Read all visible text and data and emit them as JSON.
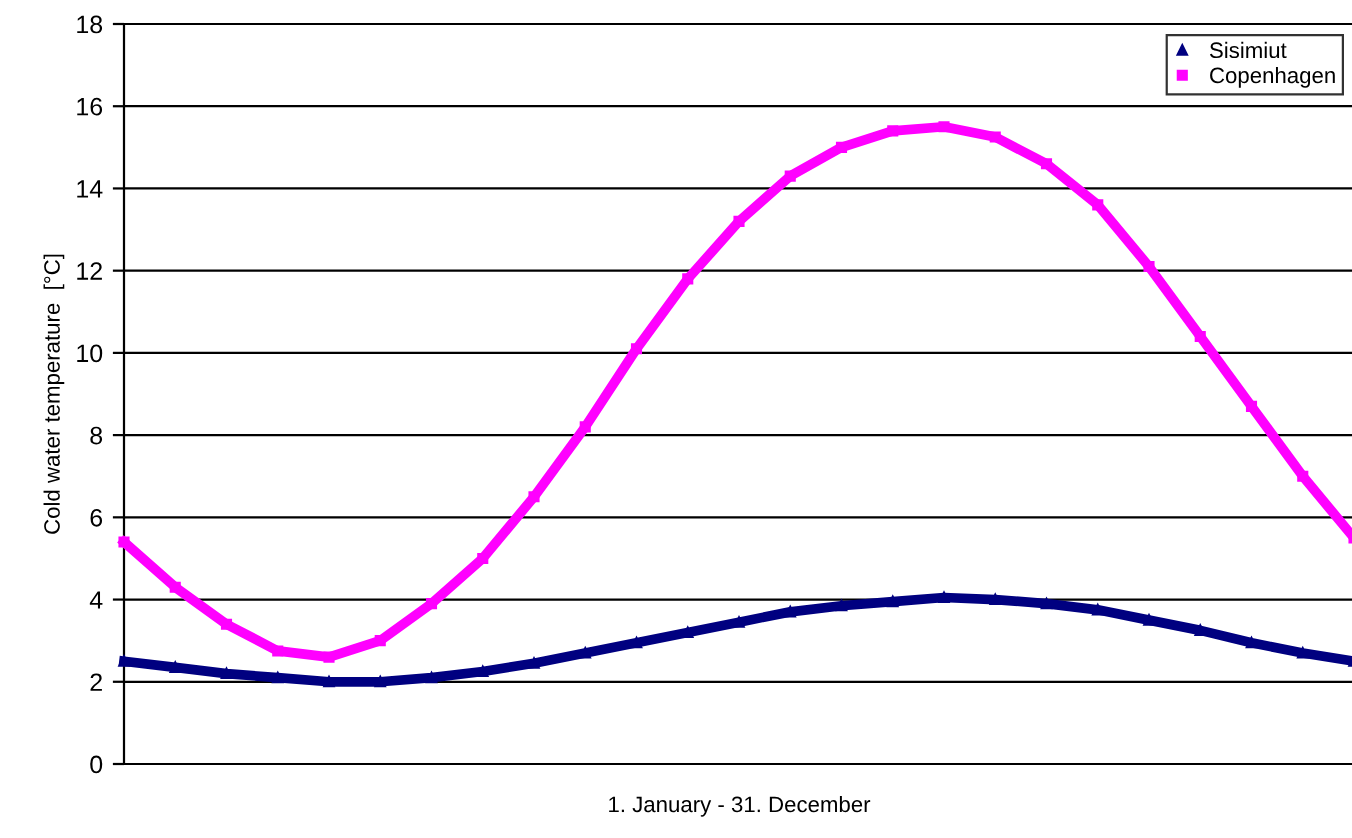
{
  "chart_data": {
    "type": "line",
    "xlabel": "1. January - 31. December",
    "ylabel": "Cold water temperature  [°C]",
    "categories": [
      null,
      null,
      null,
      null,
      null,
      null,
      null,
      null,
      null,
      null,
      null,
      null,
      null,
      null,
      null,
      null,
      null,
      null,
      null,
      null,
      null,
      null,
      null,
      null,
      null
    ],
    "series": [
      {
        "name": "Sisimiut",
        "color": "#000080",
        "marker": "triangle",
        "values": [
          2.5,
          2.35,
          2.2,
          2.1,
          2.0,
          2.0,
          2.1,
          2.25,
          2.45,
          2.7,
          2.95,
          3.2,
          3.45,
          3.7,
          3.85,
          3.95,
          4.05,
          4.0,
          3.9,
          3.75,
          3.5,
          3.25,
          2.95,
          2.7,
          2.5
        ]
      },
      {
        "name": "Copenhagen",
        "color": "#ff00ff",
        "marker": "square",
        "values": [
          5.4,
          4.3,
          3.4,
          2.75,
          2.6,
          3.0,
          3.9,
          5.0,
          6.5,
          8.2,
          10.1,
          11.8,
          13.2,
          14.3,
          15.0,
          15.4,
          15.5,
          15.25,
          14.6,
          13.6,
          12.1,
          10.4,
          8.7,
          7.0,
          5.5
        ]
      }
    ],
    "ylim": [
      0,
      18
    ],
    "yticks": [
      0,
      2,
      4,
      6,
      8,
      10,
      12,
      14,
      16,
      18
    ],
    "grid": "y",
    "legend": "top right",
    "line_style": "solid"
  }
}
